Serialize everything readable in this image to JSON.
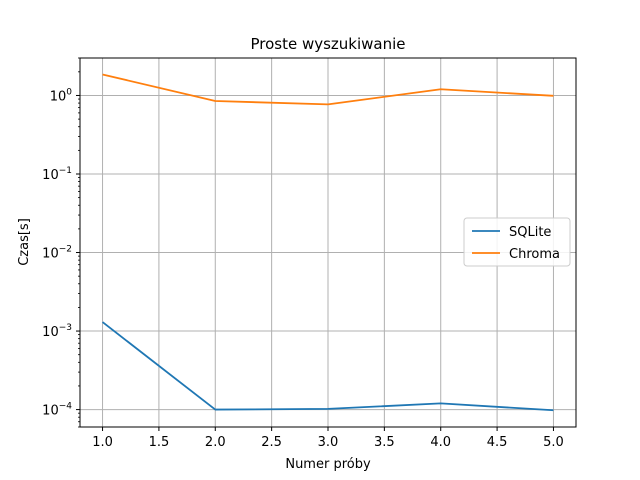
{
  "chart_data": {
    "type": "line",
    "title": "Proste wyszukiwanie",
    "xlabel": "Numer próby",
    "ylabel": "Czas[s]",
    "x": [
      1,
      2,
      3,
      4,
      5
    ],
    "xlim": [
      0.8,
      5.2
    ],
    "yscale": "log",
    "ylim": [
      6e-05,
      3
    ],
    "x_ticks": [
      1.0,
      1.5,
      2.0,
      2.5,
      3.0,
      3.5,
      4.0,
      4.5,
      5.0
    ],
    "x_tick_labels": [
      "1.0",
      "1.5",
      "2.0",
      "2.5",
      "3.0",
      "3.5",
      "4.0",
      "4.5",
      "5.0"
    ],
    "y_ticks": [
      0.0001,
      0.001,
      0.01,
      0.1,
      1
    ],
    "y_tick_labels": [
      {
        "base": "10",
        "exp": "−4"
      },
      {
        "base": "10",
        "exp": "−3"
      },
      {
        "base": "10",
        "exp": "−2"
      },
      {
        "base": "10",
        "exp": "−1"
      },
      {
        "base": "10",
        "exp": "0"
      }
    ],
    "grid": true,
    "legend_position": "center-right",
    "series": [
      {
        "name": "SQLite",
        "color": "#1f77b4",
        "values": [
          0.0013,
          0.0001,
          0.000102,
          0.00012,
          9.8e-05
        ]
      },
      {
        "name": "Chroma",
        "color": "#ff7f0e",
        "values": [
          1.85,
          0.85,
          0.77,
          1.2,
          0.99
        ]
      }
    ]
  }
}
